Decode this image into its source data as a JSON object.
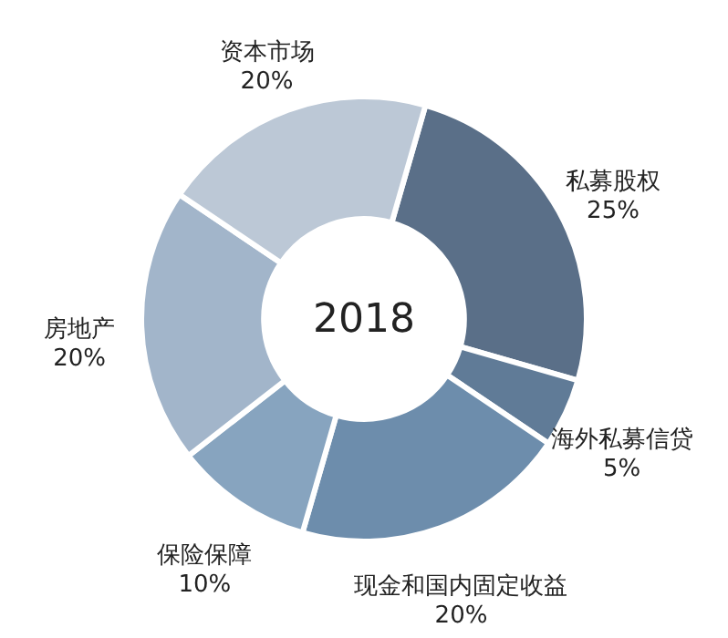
{
  "chart_data": {
    "type": "donut",
    "categories": [
      "私募股权",
      "海外私募信贷",
      "现金和国内固定收益",
      "保险保障",
      "房地产",
      "资本市场"
    ],
    "values": [
      25,
      5,
      20,
      10,
      20,
      20
    ],
    "value_labels": [
      "25%",
      "5%",
      "20%",
      "10%",
      "20%",
      "20%"
    ],
    "colors": [
      "#5a6f88",
      "#607b97",
      "#6d8dac",
      "#87a4bf",
      "#a2b5ca",
      "#bcc8d6"
    ],
    "annotations": [
      "2018"
    ]
  }
}
